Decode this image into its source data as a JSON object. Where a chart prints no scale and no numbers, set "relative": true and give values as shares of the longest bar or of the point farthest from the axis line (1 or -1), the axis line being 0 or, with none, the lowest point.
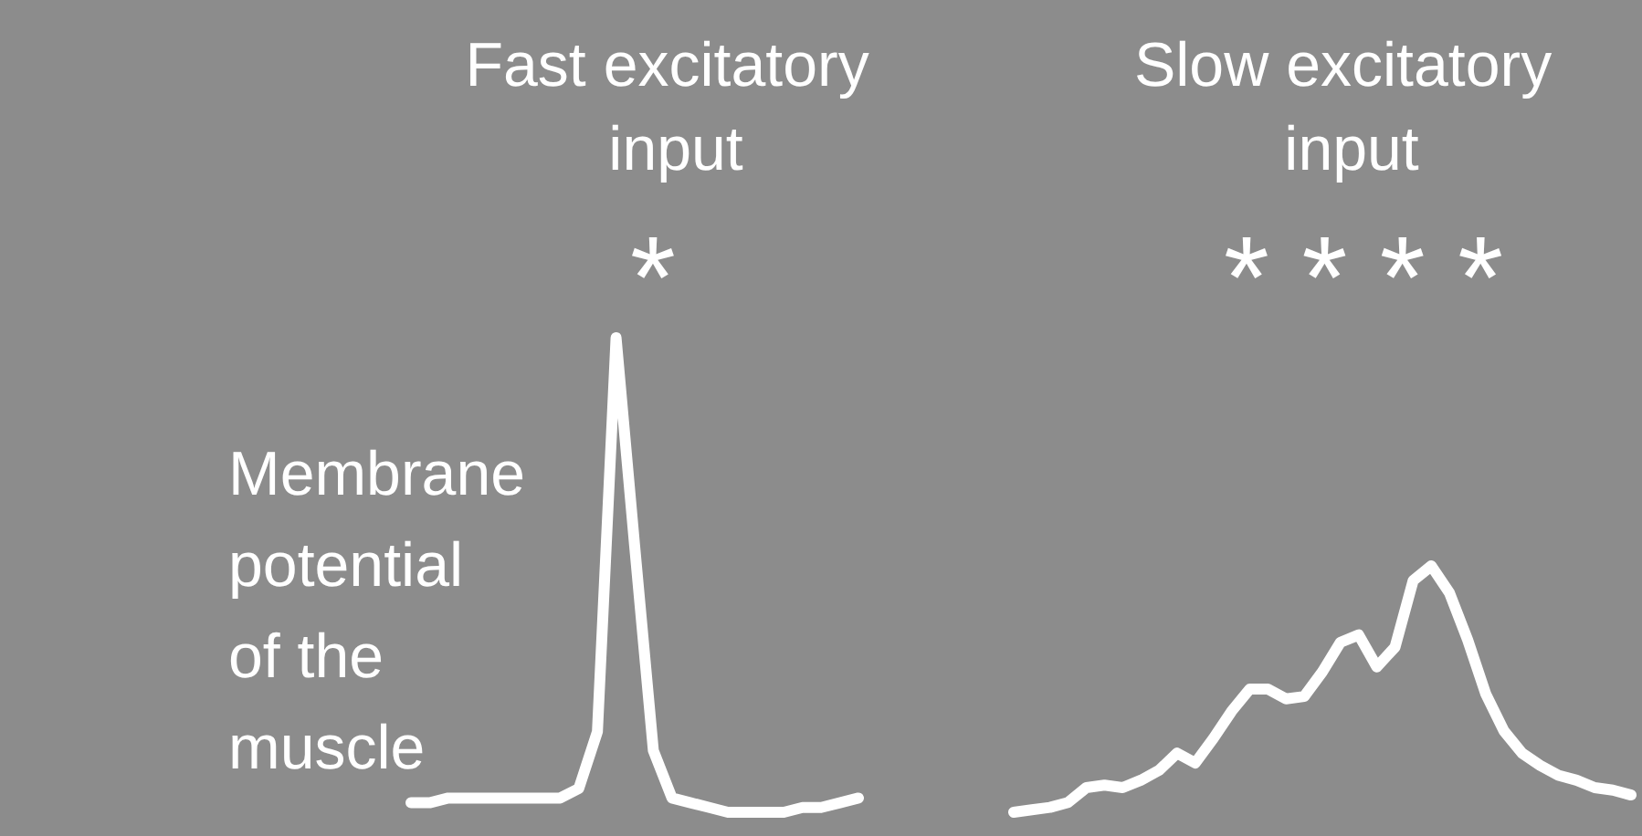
{
  "chart_data": [
    {
      "type": "line",
      "title": "Fast excitatory input",
      "ylabel": "Membrane potential of the muscle",
      "annotations": [
        "*"
      ],
      "relative": true,
      "categories": [
        null,
        null,
        null,
        null,
        null,
        null,
        null,
        null,
        null,
        null,
        null,
        null,
        null,
        null,
        null,
        null,
        null,
        null,
        null,
        null,
        null,
        null,
        null,
        null,
        null
      ],
      "color": "#ffffff",
      "values": [
        0.02,
        0.02,
        0.03,
        0.03,
        0.03,
        0.03,
        0.03,
        0.03,
        0.03,
        0.05,
        0.17,
        1,
        0.56,
        0.13,
        0.03,
        0.02,
        0.01,
        0,
        0,
        0,
        0,
        0.01,
        0.01,
        0.02,
        0.03
      ]
    },
    {
      "type": "line",
      "title": "Slow excitatory input",
      "annotations": [
        "* * * *"
      ],
      "relative": true,
      "categories": [
        null,
        null,
        null,
        null,
        null,
        null,
        null,
        null,
        null,
        null,
        null,
        null,
        null,
        null,
        null,
        null,
        null,
        null,
        null,
        null,
        null,
        null,
        null,
        null,
        null,
        null,
        null,
        null,
        null,
        null,
        null,
        null,
        null,
        null,
        null
      ],
      "color": "#ffffff",
      "values": [
        0,
        0.01,
        0.02,
        0.04,
        0.1,
        0.11,
        0.1,
        0.13,
        0.17,
        0.24,
        0.2,
        0.3,
        0.41,
        0.5,
        0.5,
        0.46,
        0.47,
        0.57,
        0.69,
        0.72,
        0.59,
        0.67,
        0.94,
        1,
        0.89,
        0.7,
        0.48,
        0.33,
        0.24,
        0.19,
        0.15,
        0.13,
        0.1,
        0.09,
        0.07
      ]
    }
  ]
}
